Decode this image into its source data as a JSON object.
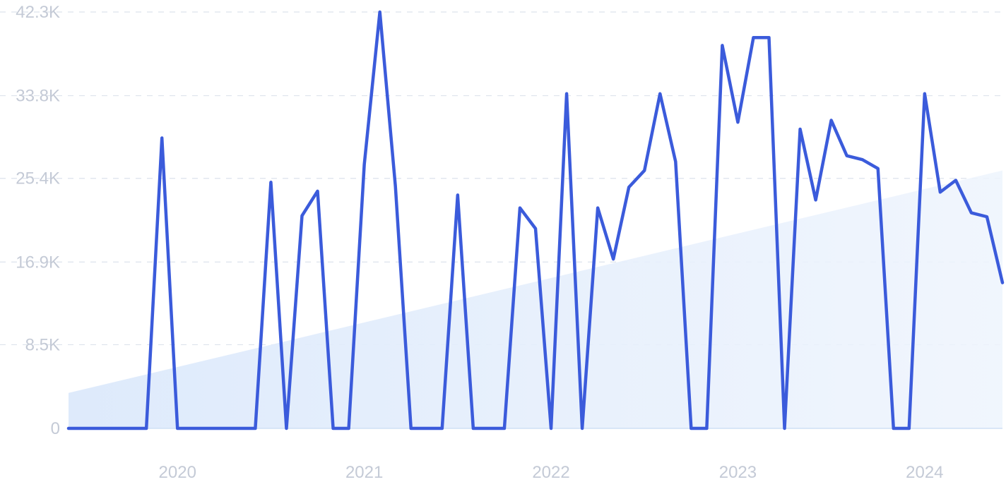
{
  "chart_data": {
    "type": "line",
    "title": "",
    "xlabel": "",
    "ylabel": "",
    "ylim": [
      0,
      42300
    ],
    "y_ticks": [
      {
        "value": 0,
        "label": "0"
      },
      {
        "value": 8500,
        "label": "8.5K"
      },
      {
        "value": 16900,
        "label": "16.9K"
      },
      {
        "value": 25400,
        "label": "25.4K"
      },
      {
        "value": 33800,
        "label": "33.8K"
      },
      {
        "value": 42300,
        "label": "42.3K"
      }
    ],
    "x_ticks": [
      {
        "index": 7,
        "label": "2020"
      },
      {
        "index": 19,
        "label": "2021"
      },
      {
        "index": 31,
        "label": "2022"
      },
      {
        "index": 43,
        "label": "2023"
      },
      {
        "index": 55,
        "label": "2024"
      }
    ],
    "grid": true,
    "legend": "none",
    "colors": {
      "line": "#3b5bdb",
      "trend_fill": "#dbe9fb",
      "grid": "#dde3ec",
      "axis_text": "#c4cad6"
    },
    "series": [
      {
        "values": [
          0,
          0,
          0,
          0,
          0,
          0,
          29500,
          0,
          0,
          0,
          0,
          0,
          0,
          25000,
          0,
          21600,
          24100,
          0,
          0,
          26800,
          42300,
          24600,
          0,
          0,
          0,
          23700,
          0,
          0,
          0,
          22400,
          20300,
          0,
          34000,
          0,
          22400,
          17200,
          24500,
          26200,
          34000,
          27100,
          0,
          0,
          38900,
          31100,
          39700,
          39700,
          0,
          30400,
          23200,
          31300,
          27700,
          27300,
          26400,
          0,
          0,
          34000,
          24000,
          25200,
          21900,
          21500,
          14800
        ]
      }
    ],
    "trend": {
      "start": 3600,
      "end": 26200
    }
  }
}
